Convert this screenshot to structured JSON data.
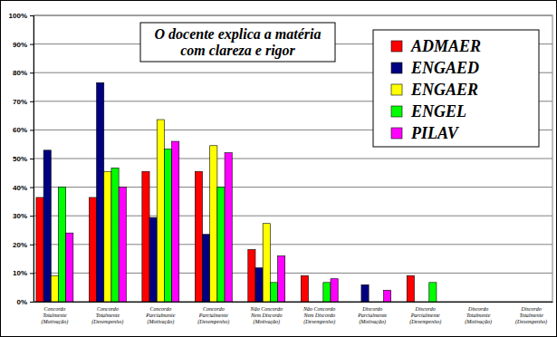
{
  "chart_data": {
    "type": "bar",
    "title": "O docente explica a matéria\ncom clareza e rigor",
    "categories": [
      "Concordo\nTotalmente\n(Motivação)",
      "Concordo\nTotalmente\n(Desempenho)",
      "Concordo\nParcialmente\n(Motivação)",
      "Concordo\nParcialmente\n(Desempenho)",
      "Não Concordo\nNem Discordo\n(Motivação)",
      "Não Concordo\nNem Discordo\n(Desempenho)",
      "Discordo\nParcialmente\n(Motivação)",
      "Discordo\nParcialmente\n(Desempenho)",
      "Discordo\nTotalmente\n(Motivação)",
      "Discordo\nTotalmente\n(Desempenho)"
    ],
    "series": [
      {
        "name": "ADMAER",
        "color": "#ff0000",
        "values": [
          36.4,
          36.4,
          45.5,
          45.5,
          18.2,
          9.1,
          0,
          9.1,
          0,
          0
        ]
      },
      {
        "name": "ENGAED",
        "color": "#000080",
        "values": [
          52.9,
          76.5,
          29.4,
          23.5,
          11.8,
          0,
          5.9,
          0,
          0,
          0
        ]
      },
      {
        "name": "ENGAER",
        "color": "#ffff00",
        "values": [
          9.1,
          45.5,
          63.6,
          54.5,
          27.3,
          0,
          0,
          0,
          0,
          0
        ]
      },
      {
        "name": "ENGEL",
        "color": "#00ff00",
        "values": [
          40,
          46.7,
          53.3,
          40,
          6.7,
          6.7,
          0,
          6.7,
          0,
          0
        ]
      },
      {
        "name": "PILAV",
        "color": "#ff00ff",
        "values": [
          24,
          40,
          56,
          52,
          16,
          8,
          4,
          0,
          0,
          0
        ]
      }
    ],
    "ylim": [
      0,
      100
    ],
    "yticks": [
      {
        "value": 0,
        "label": "0%"
      },
      {
        "value": 10,
        "label": "10%"
      },
      {
        "value": 20,
        "label": "20%"
      },
      {
        "value": 30,
        "label": "30%"
      },
      {
        "value": 40,
        "label": "40%"
      },
      {
        "value": 50,
        "label": "50%"
      },
      {
        "value": 60,
        "label": "60%"
      },
      {
        "value": 70,
        "label": "70%"
      },
      {
        "value": 80,
        "label": "80%"
      },
      {
        "value": 90,
        "label": "90%"
      },
      {
        "value": 100,
        "label": "100%"
      }
    ],
    "grid": true,
    "legend": "top-right"
  }
}
